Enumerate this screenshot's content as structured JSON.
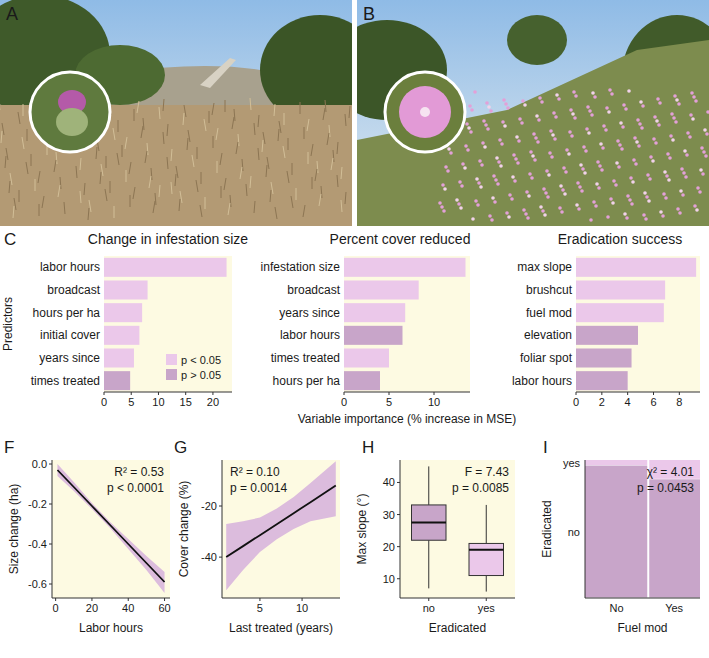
{
  "photos": [
    {
      "panel": "A"
    },
    {
      "panel": "B"
    }
  ],
  "chart_data": [
    {
      "panel": "C",
      "type": "bar",
      "orientation": "horizontal",
      "title": "Change in infestation size",
      "y_label": "Predictors",
      "categories": [
        "labor hours",
        "broadcast",
        "hours per ha",
        "initial cover",
        "years since",
        "times treated"
      ],
      "series": [
        {
          "name": "p < 0.05",
          "color": "#ebc8ea",
          "values": [
            22.5,
            8,
            7,
            6.5,
            5.5,
            null
          ]
        },
        {
          "name": "p > 0.05",
          "color": "#c8a5c9",
          "values": [
            null,
            null,
            null,
            null,
            null,
            4.8
          ]
        }
      ],
      "xlim": [
        0,
        23.5
      ],
      "xticks": [
        0,
        5,
        10,
        15,
        20
      ],
      "legend": "lower right"
    },
    {
      "type": "bar",
      "orientation": "horizontal",
      "title": "Percent cover reduced",
      "x_label": "Variable importance (% increase in MSE)",
      "categories": [
        "infestation size",
        "broadcast",
        "years since",
        "labor hours",
        "times treated",
        "hours per ha"
      ],
      "series": [
        {
          "color": "#ebc8ea",
          "values": [
            13.5,
            8.3,
            6.8,
            null,
            5.0,
            null
          ]
        },
        {
          "color": "#c8a5c9",
          "values": [
            null,
            null,
            null,
            6.5,
            null,
            4.0
          ]
        }
      ],
      "xlim": [
        0,
        14
      ],
      "xticks": [
        0,
        5,
        10
      ]
    },
    {
      "type": "bar",
      "orientation": "horizontal",
      "title": "Eradication success",
      "categories": [
        "max slope",
        "brushcut",
        "fuel mod",
        "elevation",
        "foliar spot",
        "labor hours"
      ],
      "series": [
        {
          "color": "#ebc8ea",
          "values": [
            9.3,
            6.9,
            6.8,
            null,
            null,
            null
          ]
        },
        {
          "color": "#c8a5c9",
          "values": [
            null,
            null,
            null,
            4.8,
            4.3,
            4.0
          ]
        }
      ],
      "xlim": [
        0,
        9.6
      ],
      "xticks": [
        0,
        2,
        4,
        6,
        8
      ]
    },
    {
      "panel": "F",
      "type": "line",
      "x_label": "Labor hours",
      "y_label": "Size change (ha)",
      "x": [
        1,
        10,
        20,
        30,
        40,
        50,
        60
      ],
      "series": [
        {
          "color": "#111111",
          "values": [
            -0.03,
            -0.115,
            -0.21,
            -0.305,
            -0.4,
            -0.495,
            -0.59
          ]
        }
      ],
      "ci_lower": [
        -0.06,
        -0.135,
        -0.225,
        -0.32,
        -0.425,
        -0.53,
        -0.645
      ],
      "ci_upper": [
        0.0,
        -0.09,
        -0.195,
        -0.29,
        -0.375,
        -0.46,
        -0.54
      ],
      "xlim": [
        -2,
        63
      ],
      "xticks": [
        0,
        20,
        40,
        60
      ],
      "ylim": [
        -0.67,
        0.02
      ],
      "yticks": [
        -0.6,
        -0.4,
        -0.2,
        {
          "value": 0,
          "label": "0.0"
        }
      ],
      "annotations": [
        "R² = 0.53",
        "p < 0.0001"
      ]
    },
    {
      "panel": "G",
      "type": "line",
      "x_label": "Last treated (years)",
      "y_label": "Cover change (%)",
      "x": [
        1,
        3,
        5,
        7,
        9,
        11,
        14
      ],
      "series": [
        {
          "color": "#111111",
          "values": [
            -40,
            -35.7,
            -31.4,
            -27.1,
            -22.8,
            -18.5,
            -12
          ]
        }
      ],
      "ci_lower": [
        -53,
        -45,
        -38,
        -33,
        -29,
        -26,
        -24
      ],
      "ci_upper": [
        -27,
        -26,
        -24.5,
        -21,
        -16.5,
        -11,
        -2.5
      ],
      "xlim": [
        0.5,
        14.5
      ],
      "xticks": [
        5,
        10
      ],
      "ylim": [
        -56,
        -2
      ],
      "yticks": [
        -40,
        -20
      ],
      "annotations": [
        "R² = 0.10",
        "p = 0.0014"
      ]
    },
    {
      "panel": "H",
      "type": "box",
      "x_label": "Eradicated",
      "y_label": "Max slope (°)",
      "categories": [
        "no",
        "yes"
      ],
      "colors": [
        "#c8a5c9",
        "#ebc8ea"
      ],
      "min": [
        7,
        6
      ],
      "q1": [
        22,
        11
      ],
      "median": [
        27.5,
        19
      ],
      "q3": [
        33,
        21
      ],
      "max": [
        45,
        33
      ],
      "ylim": [
        4,
        47
      ],
      "yticks": [
        10,
        20,
        30,
        40
      ],
      "annotations": [
        "F = 7.43",
        "p = 0.0085"
      ]
    },
    {
      "panel": "I",
      "type": "mosaic",
      "x_label": "Fuel mod",
      "y_label": "Eradicated",
      "categories": [
        "No",
        "Yes"
      ],
      "widths": [
        0.55,
        0.45
      ],
      "series": [
        {
          "name": "no",
          "color": "#c8a5c9",
          "values": [
            0.96,
            0.86
          ]
        },
        {
          "name": "yes",
          "color": "#ebc8ea",
          "values": [
            0.04,
            0.14
          ]
        }
      ],
      "xlim": [
        0,
        1
      ],
      "ylim": [
        0,
        1
      ],
      "stacked": true,
      "annotations": [
        "χ² = 4.01",
        "p = 0.0453"
      ]
    }
  ]
}
